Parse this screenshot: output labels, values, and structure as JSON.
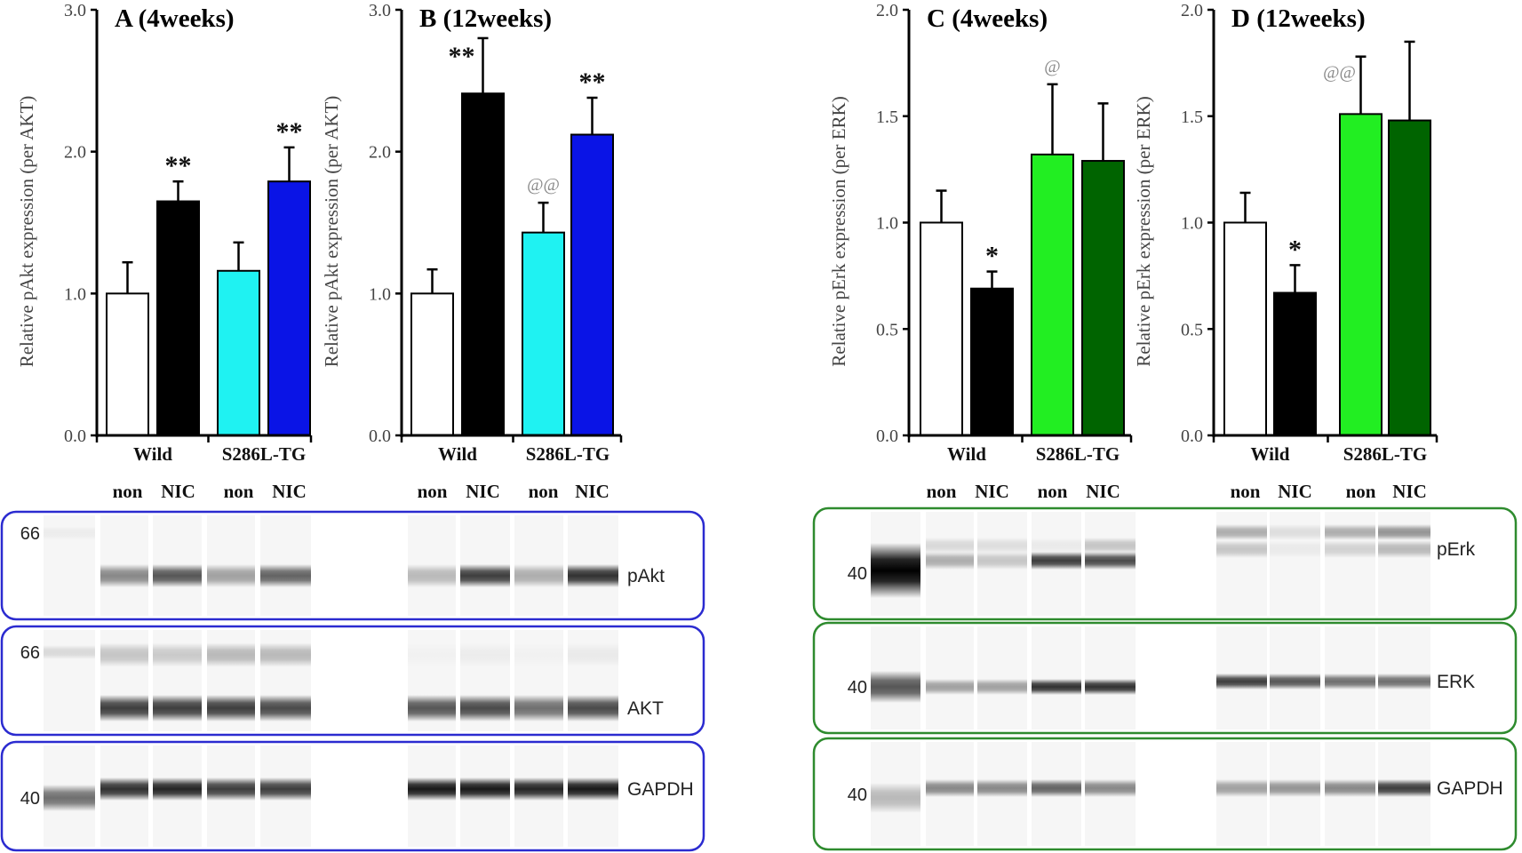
{
  "chart_data": [
    {
      "type": "bar",
      "title": "A (4weeks)",
      "ylabel": "Relative  pAkt expression (per AKT)",
      "ylim": [
        0,
        3.0
      ],
      "yticks": [
        "0.0",
        "1.0",
        "2.0",
        "3.0"
      ],
      "groups": [
        "Wild",
        "S286L-TG"
      ],
      "categories": [
        "non",
        "NIC",
        "non",
        "NIC"
      ],
      "values": [
        1.0,
        1.65,
        1.16,
        1.79
      ],
      "errors": [
        0.22,
        0.14,
        0.2,
        0.24
      ],
      "colors": [
        "#ffffff",
        "#000000",
        "#1ff2f2",
        "#0a14e6"
      ],
      "annotations": [
        "",
        "**",
        "",
        "**"
      ],
      "grid": false
    },
    {
      "type": "bar",
      "title": "B (12weeks)",
      "ylabel": "Relative  pAkt expression (per AKT)",
      "ylim": [
        0,
        3.0
      ],
      "yticks": [
        "0.0",
        "1.0",
        "2.0",
        "3.0"
      ],
      "groups": [
        "Wild",
        "S286L-TG"
      ],
      "categories": [
        "non",
        "NIC",
        "non",
        "NIC"
      ],
      "values": [
        1.0,
        2.41,
        1.43,
        2.12
      ],
      "errors": [
        0.17,
        0.39,
        0.21,
        0.26
      ],
      "colors": [
        "#ffffff",
        "#000000",
        "#1ff2f2",
        "#0a14e6"
      ],
      "annotations": [
        "",
        "**",
        "@@",
        "**"
      ],
      "grid": false
    },
    {
      "type": "bar",
      "title": "C (4weeks)",
      "ylabel": "Relative  pErk expression (per ERK)",
      "ylim": [
        0,
        2.0
      ],
      "yticks": [
        "0.0",
        "0.5",
        "1.0",
        "1.5",
        "2.0"
      ],
      "groups": [
        "Wild",
        "S286L-TG"
      ],
      "categories": [
        "non",
        "NIC",
        "non",
        "NIC"
      ],
      "values": [
        1.0,
        0.69,
        1.32,
        1.29
      ],
      "errors": [
        0.15,
        0.08,
        0.33,
        0.27
      ],
      "colors": [
        "#ffffff",
        "#000000",
        "#22ee22",
        "#006400"
      ],
      "annotations": [
        "",
        "*",
        "@",
        ""
      ],
      "grid": false
    },
    {
      "type": "bar",
      "title": "D (12weeks)",
      "ylabel": "Relative  pErk expression (per ERK)",
      "ylim": [
        0,
        2.0
      ],
      "yticks": [
        "0.0",
        "0.5",
        "1.0",
        "1.5",
        "2.0"
      ],
      "groups": [
        "Wild",
        "S286L-TG"
      ],
      "categories": [
        "non",
        "NIC",
        "non",
        "NIC"
      ],
      "values": [
        1.0,
        0.67,
        1.51,
        1.48
      ],
      "errors": [
        0.14,
        0.13,
        0.27,
        0.37
      ],
      "colors": [
        "#ffffff",
        "#000000",
        "#22ee22",
        "#006400"
      ],
      "annotations": [
        "",
        "*",
        "@@",
        ""
      ],
      "grid": false
    }
  ],
  "annotation_colors": {
    "star": "#111111",
    "at": "#888888"
  },
  "blots": {
    "akt_panel": {
      "border_color": "#2b2bd0",
      "rows": [
        {
          "label": "pAkt",
          "marker": "66",
          "ladder": 0.04,
          "upper_left": [
            0,
            0,
            0,
            0
          ],
          "upper_right": [
            0,
            0,
            0,
            0
          ]
        },
        {
          "label": "AKT",
          "marker": "66",
          "ladder": 0.12,
          "upper_left": [
            0.2,
            0.18,
            0.25,
            0.25
          ],
          "upper_right": [
            0.02,
            0.04,
            0.02,
            0.05
          ]
        },
        {
          "label": "GAPDH",
          "marker": "40",
          "ladder": 0.55,
          "upper_left": [
            0,
            0,
            0,
            0
          ],
          "upper_right": [
            0,
            0,
            0,
            0
          ]
        }
      ]
    },
    "erk_panel": {
      "border_color": "#2e8b2e",
      "rows": [
        {
          "label": "pErk",
          "marker": "40",
          "ladder": 1.0,
          "upper_left": [
            0.12,
            0.1,
            0.05,
            0.2
          ],
          "upper_right": [
            0.3,
            0.1,
            0.3,
            0.4
          ]
        },
        {
          "label": "ERK",
          "marker": "40",
          "ladder": 0.65,
          "upper_left": [
            0,
            0,
            0,
            0
          ],
          "upper_right": [
            0,
            0,
            0,
            0
          ]
        },
        {
          "label": "GAPDH",
          "marker": "40",
          "ladder": 0.25,
          "upper_left": [
            0,
            0,
            0,
            0
          ],
          "upper_right": [
            0,
            0,
            0,
            0
          ]
        }
      ]
    }
  }
}
